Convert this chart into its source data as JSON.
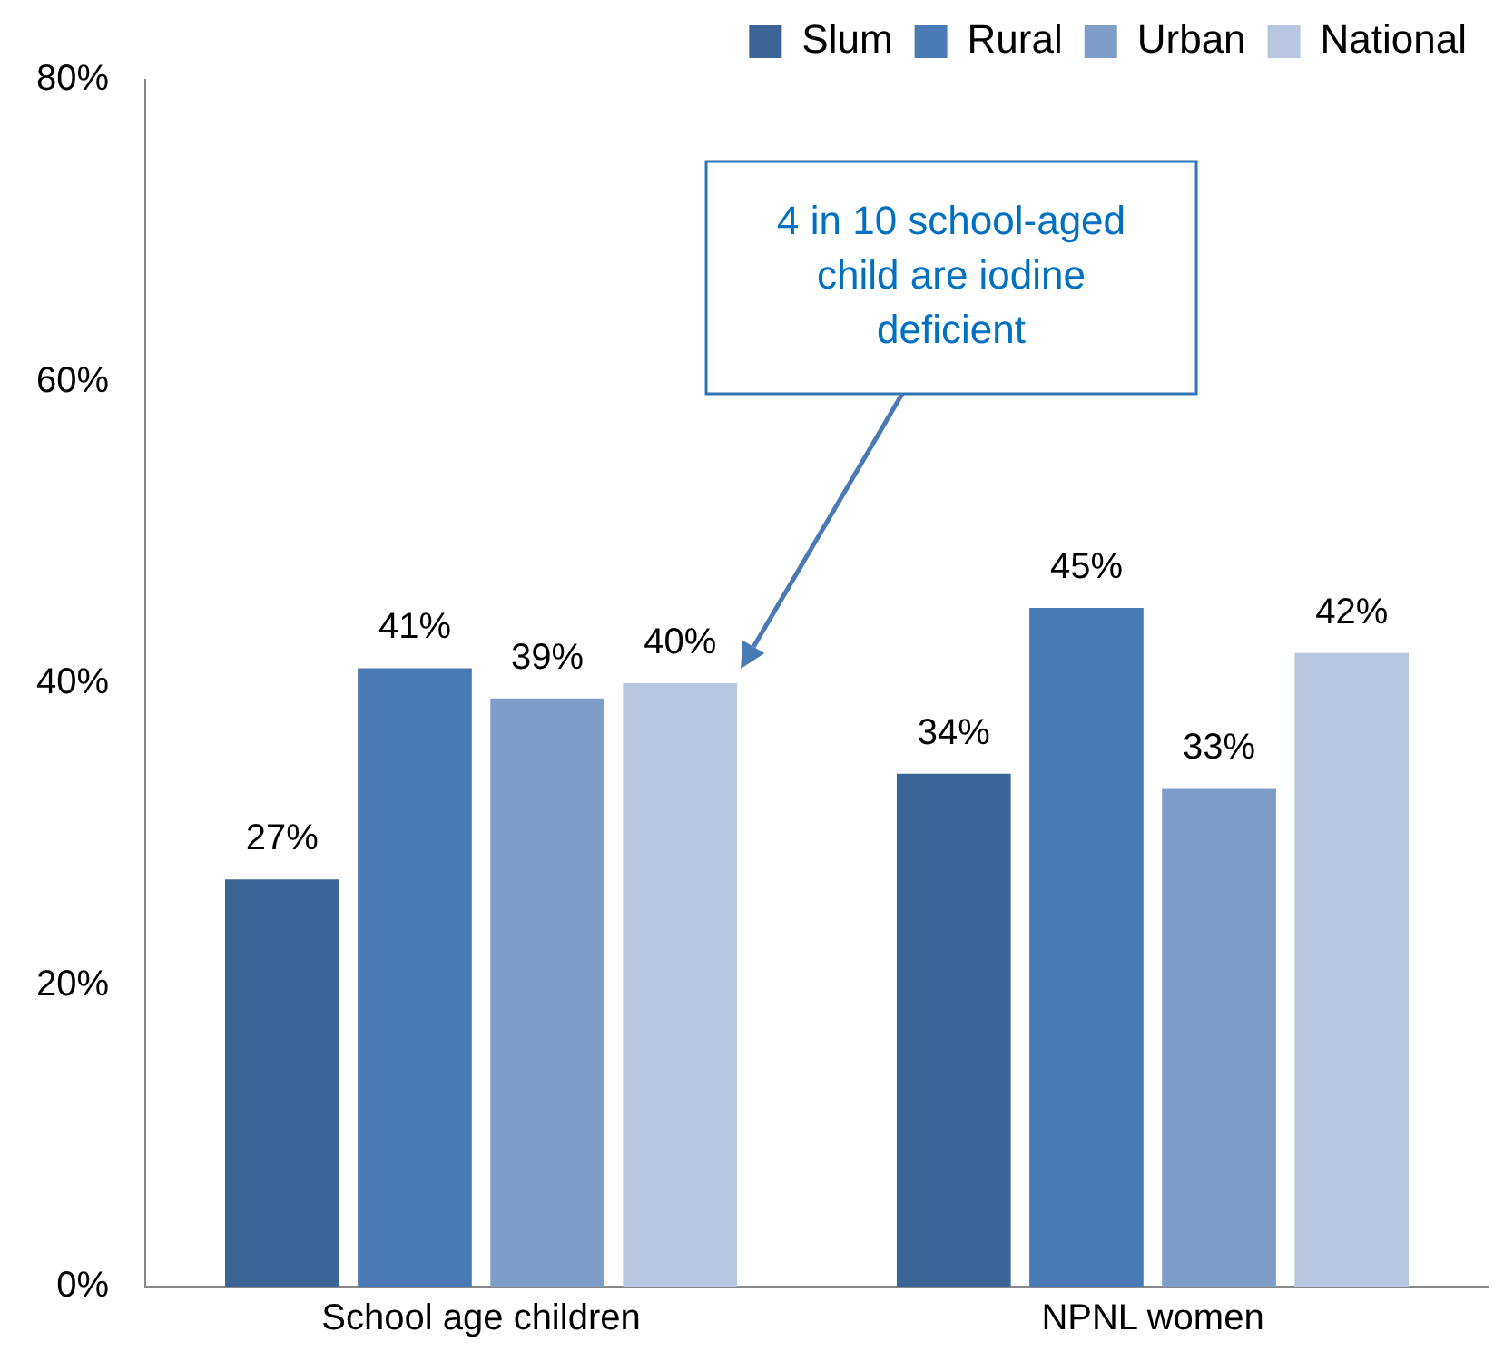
{
  "chart_data": {
    "type": "bar",
    "categories": [
      "School age children",
      "NPNL women"
    ],
    "series": [
      {
        "name": "Slum",
        "color": "#3b6596",
        "values": [
          27,
          34
        ],
        "value_labels": [
          "27%",
          "34%"
        ]
      },
      {
        "name": "Rural",
        "color": "#4a7ab5",
        "values": [
          41,
          45
        ],
        "value_labels": [
          "41%",
          "45%"
        ]
      },
      {
        "name": "Urban",
        "color": "#7f9dc9",
        "values": [
          39,
          33
        ],
        "value_labels": [
          "39%",
          "33%"
        ]
      },
      {
        "name": "National",
        "color": "#b8c6e0",
        "values": [
          40,
          42
        ],
        "value_labels": [
          "40%",
          "42%"
        ]
      }
    ],
    "ylim": [
      0,
      80
    ],
    "yticks": [
      {
        "value": 0,
        "label": "0%"
      },
      {
        "value": 20,
        "label": "20%"
      },
      {
        "value": 40,
        "label": "40%"
      },
      {
        "value": 60,
        "label": "60%"
      },
      {
        "value": 80,
        "label": "80%"
      }
    ],
    "grid": false,
    "legend": "top right",
    "annotations": [
      "4 in 10 school-aged child are iodine deficient"
    ]
  }
}
